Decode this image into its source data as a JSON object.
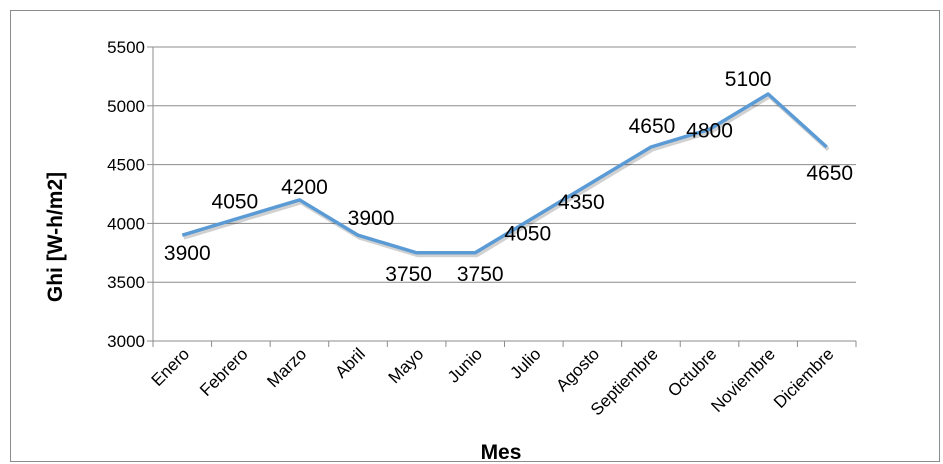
{
  "chart_data": {
    "type": "line",
    "categories": [
      "Enero",
      "Febrero",
      "Marzo",
      "Abril",
      "Mayo",
      "Junio",
      "Julio",
      "Agosto",
      "Septiembre",
      "Octubre",
      "Noviembre",
      "Diciembre"
    ],
    "series": [
      {
        "values": [
          3900,
          4050,
          4200,
          3900,
          3750,
          3750,
          4050,
          4350,
          4650,
          4800,
          5100,
          4650
        ],
        "color": "#5b9bd5"
      }
    ],
    "data_labels": [
      "3900",
      "4050",
      "4200",
      "3900",
      "3750",
      "3750",
      "4050",
      "4350",
      "4650",
      "4800",
      "5100",
      "4650"
    ],
    "xlabel": "Mes",
    "ylabel": "Ghi [W-h/m2]",
    "ylim": [
      3000,
      5500
    ],
    "yticks": [
      3000,
      3500,
      4000,
      4500,
      5000,
      5500
    ],
    "grid": true,
    "legend": "none"
  }
}
